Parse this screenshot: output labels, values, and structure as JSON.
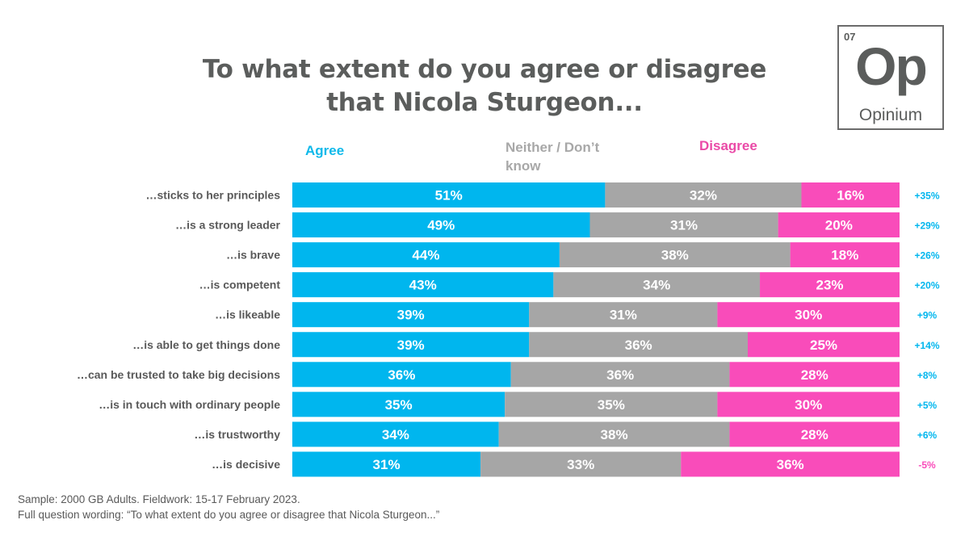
{
  "title_lines": [
    "To what extent do you agree or disagree",
    "that Nicola Sturgeon..."
  ],
  "logo": {
    "number": "07",
    "symbol": "Op",
    "name": "Opinium"
  },
  "legend": {
    "agree": "Agree",
    "neither": "Neither / Don’t know",
    "disagree": "Disagree"
  },
  "colors": {
    "agree": "#00b6ee",
    "neither": "#a6a6a6",
    "disagree": "#f94cba",
    "net_positive": "#00b6ee",
    "net_negative": "#f94cba",
    "label_text": "#595959"
  },
  "chart_data": {
    "type": "bar",
    "orientation": "horizontal",
    "stacked": true,
    "title": "To what extent do you agree or disagree that Nicola Sturgeon...",
    "categories": [
      "…sticks to her principles",
      "…is a strong leader",
      "…is brave",
      "…is competent",
      "…is likeable",
      "…is able to get things done",
      "…can be trusted to take big decisions",
      "…is in touch with ordinary people",
      "…is trustworthy",
      "…is decisive"
    ],
    "series": [
      {
        "name": "Agree",
        "values": [
          51,
          49,
          44,
          43,
          39,
          39,
          36,
          35,
          34,
          31
        ]
      },
      {
        "name": "Neither / Don’t know",
        "values": [
          32,
          31,
          38,
          34,
          31,
          36,
          36,
          35,
          38,
          33
        ]
      },
      {
        "name": "Disagree",
        "values": [
          16,
          20,
          18,
          23,
          30,
          25,
          28,
          30,
          28,
          36
        ]
      }
    ],
    "net_labels": [
      "+35%",
      "+29%",
      "+26%",
      "+20%",
      "+9%",
      "+14%",
      "+8%",
      "+5%",
      "+6%",
      "-5%"
    ],
    "xlim": [
      0,
      100
    ],
    "value_suffix": "%",
    "legend_position": "top"
  },
  "footnote": {
    "line1": "Sample: 2000 GB Adults. Fieldwork: 15-17 February 2023.",
    "line2": "Full question wording: “To what extent do you agree or disagree that Nicola Sturgeon...”"
  }
}
